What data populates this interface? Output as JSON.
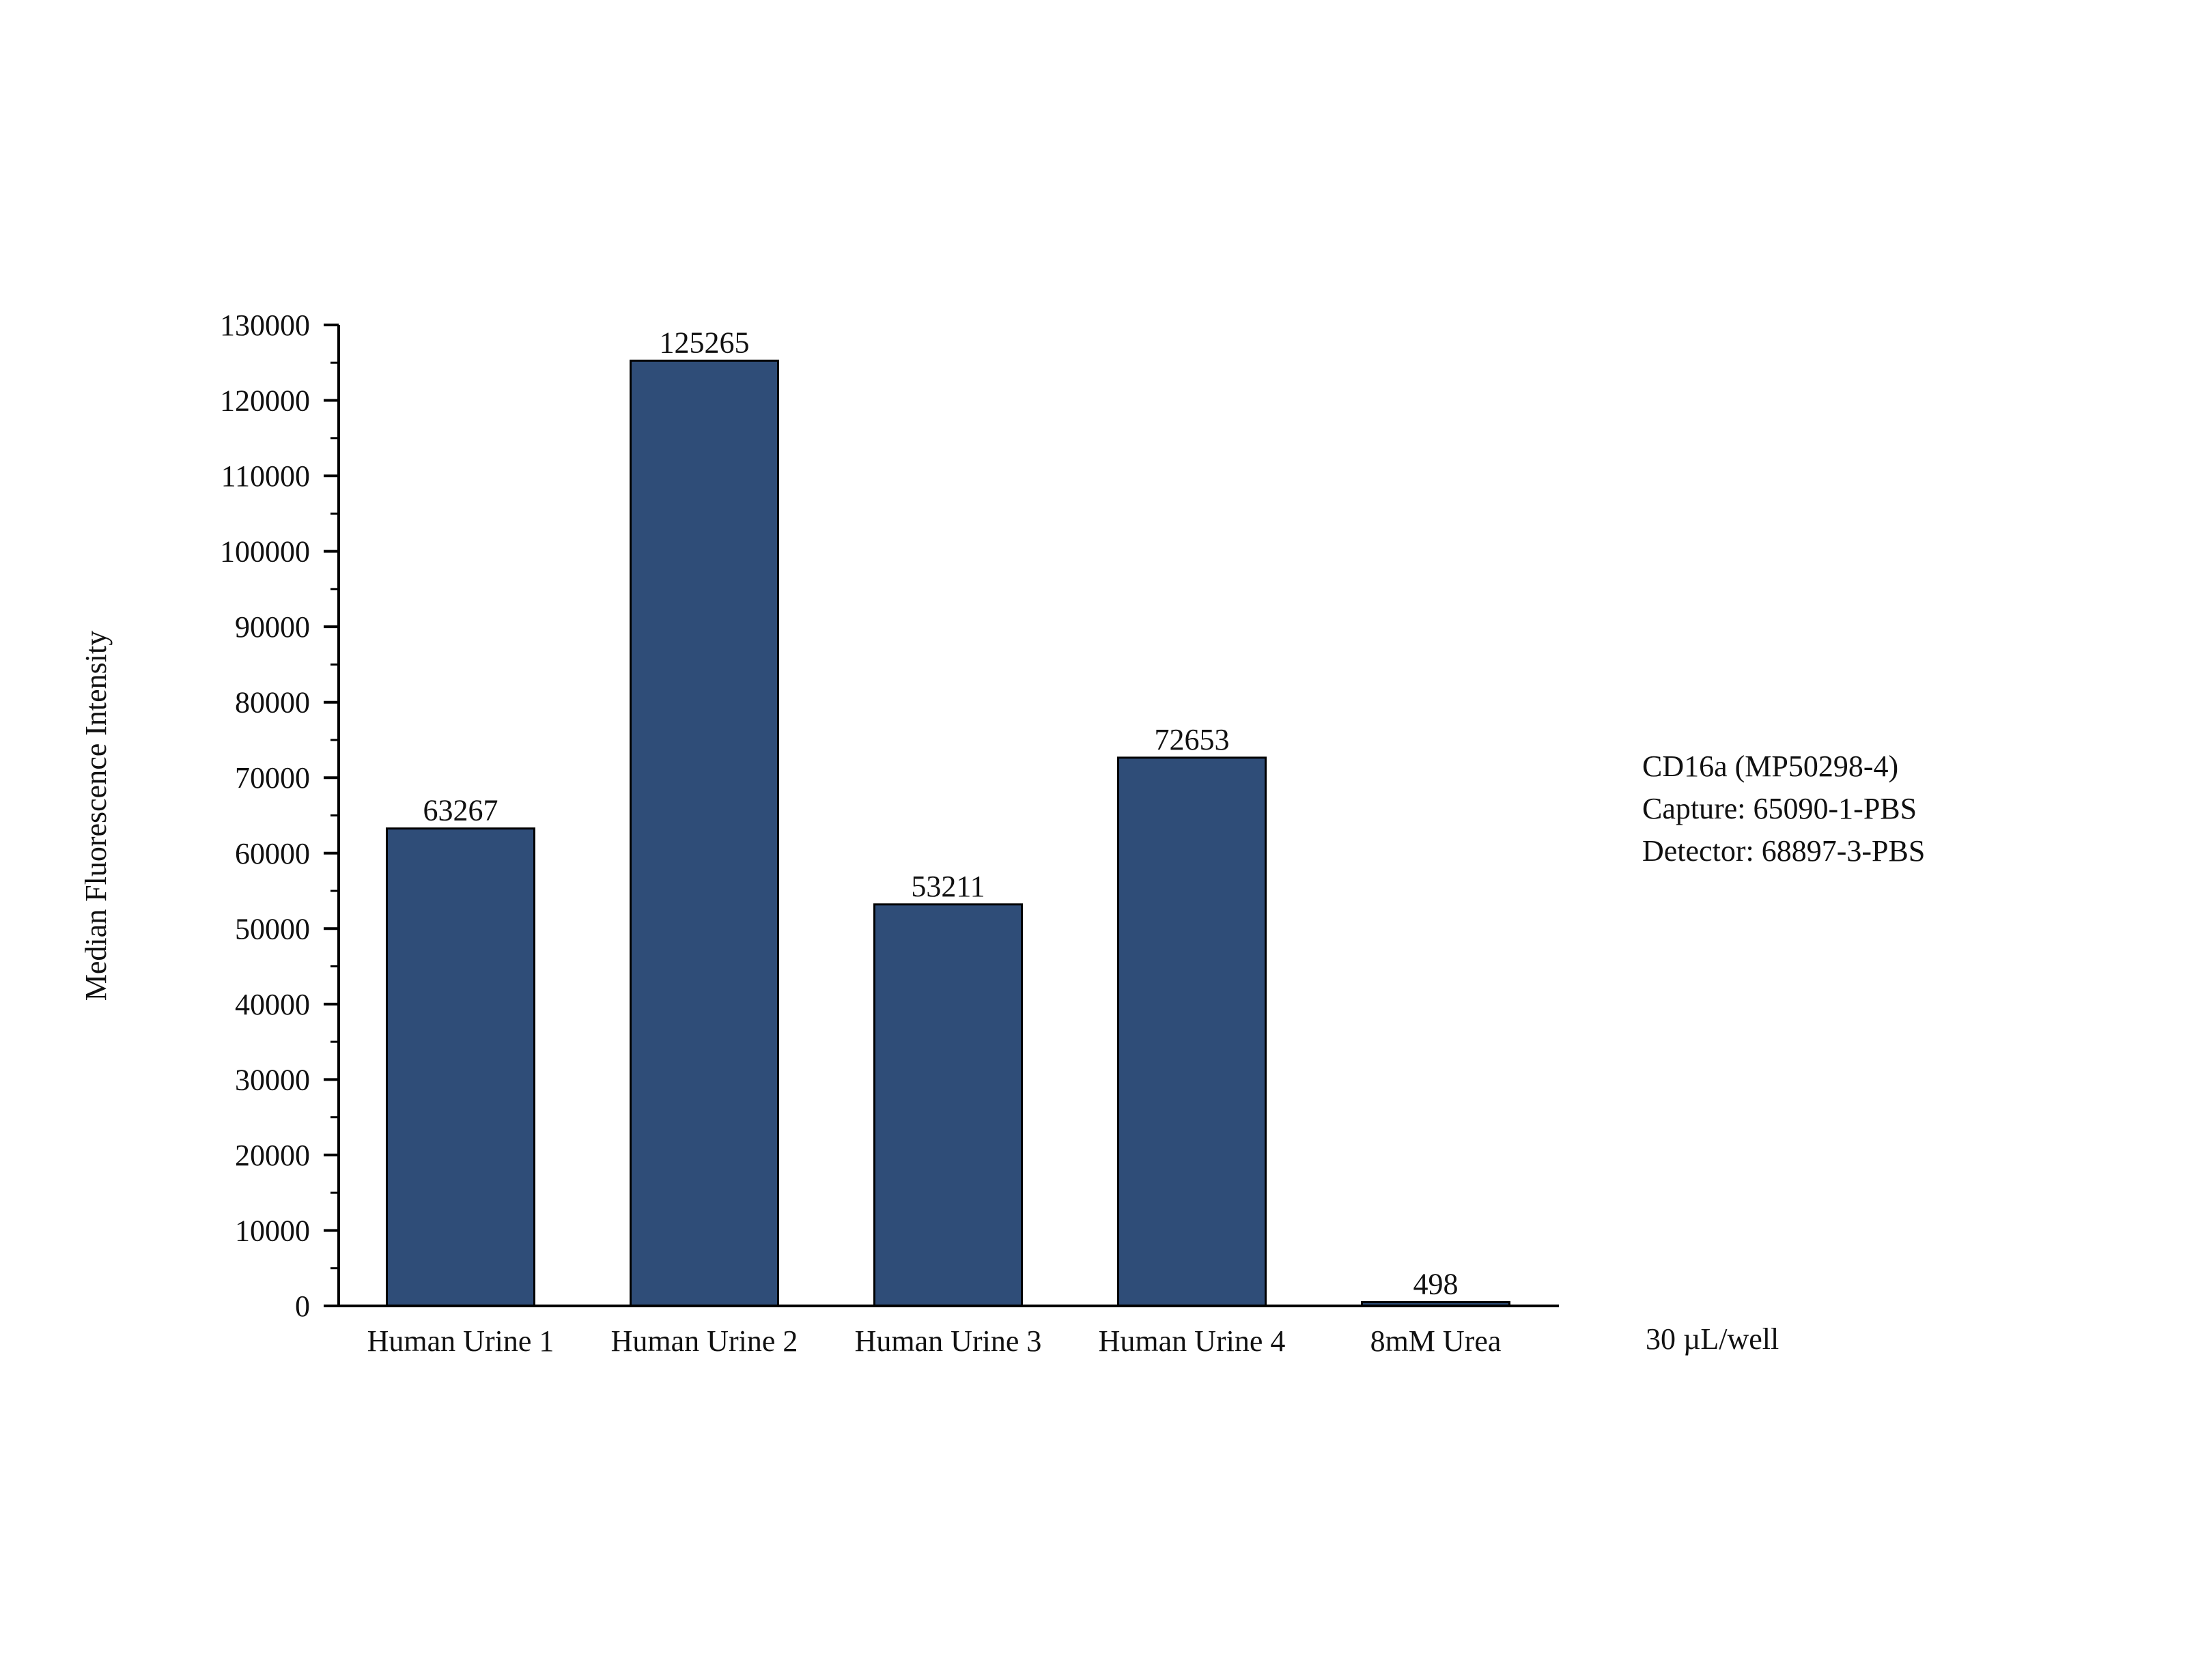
{
  "chart_data": {
    "type": "bar",
    "title": "",
    "xlabel": "",
    "ylabel": "Median Fluorescence Intensity",
    "categories": [
      "Human Urine 1",
      "Human Urine 2",
      "Human Urine 3",
      "Human Urine 4",
      "8mM Urea"
    ],
    "values": [
      63267,
      125265,
      53211,
      72653,
      498
    ],
    "data_labels": [
      "63267",
      "125265",
      "53211",
      "72653",
      "498"
    ],
    "ylim": [
      0,
      130000
    ],
    "yticks": [
      0,
      10000,
      20000,
      30000,
      40000,
      50000,
      60000,
      70000,
      80000,
      90000,
      100000,
      110000,
      120000,
      130000
    ],
    "ytick_labels": [
      "0",
      "10000",
      "20000",
      "30000",
      "40000",
      "50000",
      "60000",
      "70000",
      "80000",
      "90000",
      "100000",
      "110000",
      "120000",
      "130000"
    ],
    "minor_ticks": true,
    "grid": false,
    "bar_color": "#2f4d78",
    "annotations": {
      "lines": [
        "CD16a (MP50298-4)",
        "Capture: 65090-1-PBS",
        "Detector: 68897-3-PBS"
      ],
      "footnote": "30 µL/well"
    }
  }
}
